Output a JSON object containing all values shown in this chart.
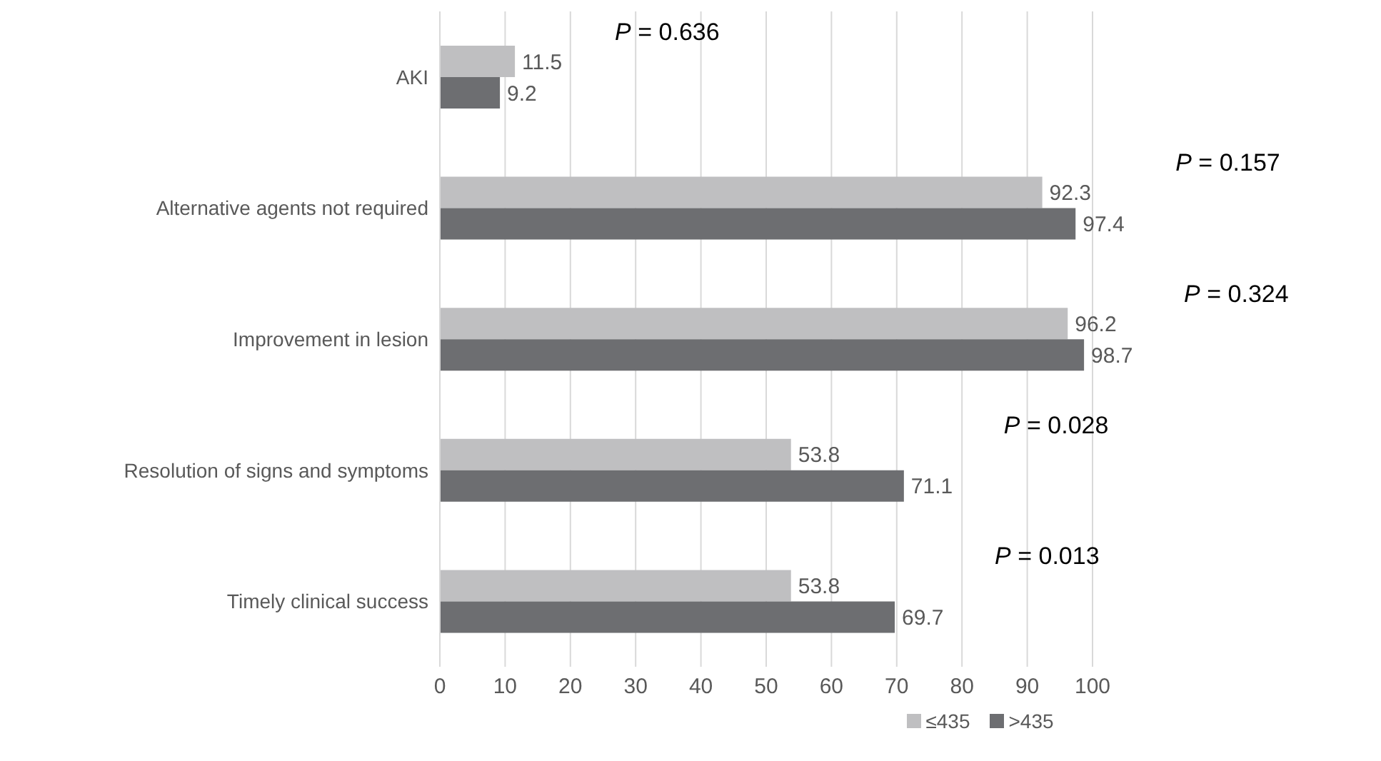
{
  "chart_data": {
    "type": "bar",
    "orientation": "horizontal",
    "categories": [
      "AKI",
      "Alternative agents not required",
      "Improvement in lesion",
      "Resolution of signs and symptoms",
      "Timely clinical success"
    ],
    "series": [
      {
        "name": "≤435",
        "color": "#bfbfc1",
        "values": [
          11.5,
          92.3,
          96.2,
          53.8,
          53.8
        ]
      },
      {
        "name": ">435",
        "color": "#6d6e71",
        "values": [
          9.2,
          97.4,
          98.7,
          71.1,
          69.7
        ]
      }
    ],
    "xlim": [
      0,
      100
    ],
    "xticks": [
      0,
      10,
      20,
      30,
      40,
      50,
      60,
      70,
      80,
      90,
      100
    ],
    "grid": "x",
    "legend": "bottom",
    "data_labels": true,
    "annotations": [
      "P = 0.636",
      "P = 0.157",
      "P = 0.324",
      "P = 0.028",
      "P = 0.013"
    ]
  }
}
